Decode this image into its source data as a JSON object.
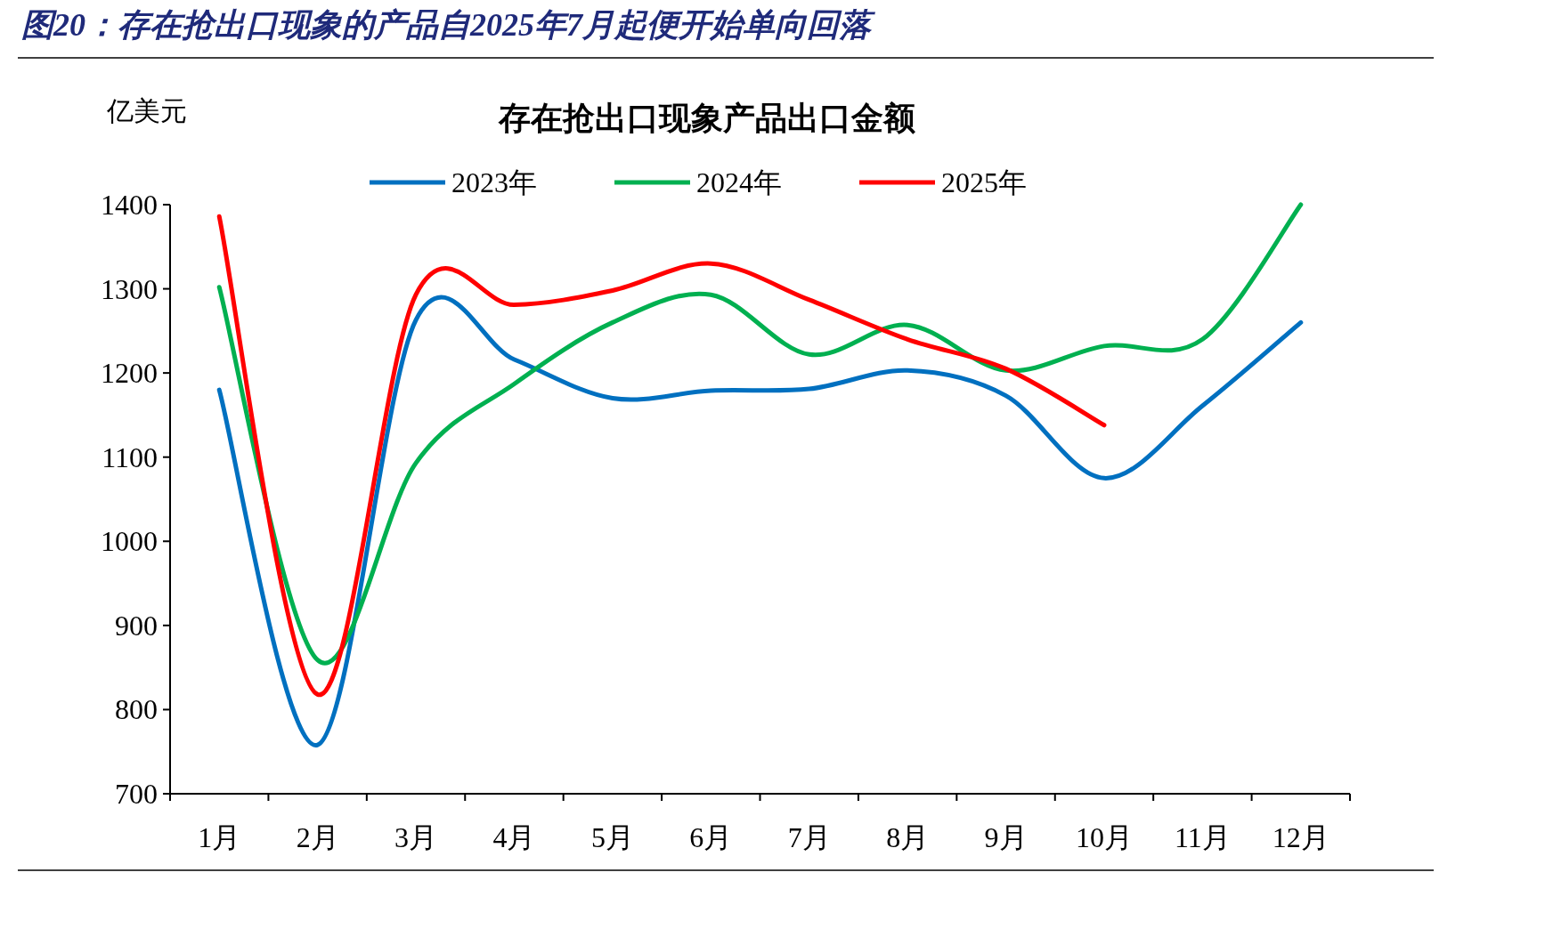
{
  "chart_data": {
    "type": "line",
    "title": "图20：存在抢出口现象的产品自2025年7月起便开始单向回落",
    "subtitle": "存在抢出口现象产品出口金额",
    "ylabel": "亿美元",
    "categories": [
      "1月",
      "2月",
      "3月",
      "4月",
      "5月",
      "6月",
      "7月",
      "8月",
      "9月",
      "10月",
      "11月",
      "12月"
    ],
    "series": [
      {
        "name": "2023年",
        "color": "#0070c0",
        "values": [
          1180,
          758,
          1263,
          1216,
          1170,
          1179,
          1181,
          1203,
          1173,
          1075,
          1161,
          1260
        ]
      },
      {
        "name": "2024年",
        "color": "#00b050",
        "values": [
          1302,
          859,
          1093,
          1187,
          1260,
          1293,
          1222,
          1257,
          1203,
          1232,
          1240,
          1400
        ]
      },
      {
        "name": "2025年",
        "color": "#ff0000",
        "values": [
          1386,
          818,
          1293,
          1281,
          1298,
          1330,
          1287,
          1240,
          1205,
          1138,
          null,
          null
        ]
      }
    ],
    "ylim": [
      700,
      1400
    ],
    "yticks": [
      700,
      800,
      900,
      1000,
      1100,
      1200,
      1300,
      1400
    ],
    "grid": false,
    "legend": "top",
    "marker": "none",
    "line_style": "solid"
  }
}
